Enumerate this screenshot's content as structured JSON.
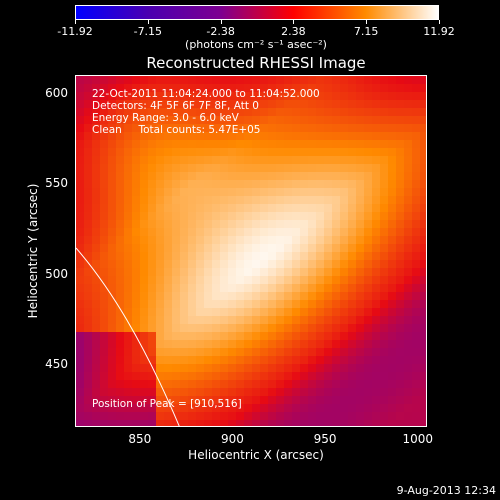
{
  "chart_data": {
    "type": "heatmap",
    "title": "Reconstructed RHESSI Image",
    "xlabel": "Heliocentric X (arcsec)",
    "ylabel": "Heliocentric Y (arcsec)",
    "xlim": [
      815,
      1005
    ],
    "ylim": [
      415,
      610
    ],
    "x_ticks": [
      "850",
      "900",
      "950",
      "1000"
    ],
    "y_ticks": [
      "450",
      "500",
      "550",
      "600"
    ],
    "colorbar": {
      "range": [
        -11.92,
        11.92
      ],
      "tick_labels": [
        "-11.92",
        "-7.15",
        "-2.38",
        "2.38",
        "7.15",
        "11.92"
      ],
      "units": "(photons cm⁻² s⁻¹ asec⁻²)",
      "colors": [
        "#0000ff",
        "#4b00b0",
        "#7d0090",
        "#ff0000",
        "#ff8a00",
        "#ffffff"
      ]
    },
    "annotations": [
      "22-Oct-2011 11:04:24.000 to 11:04:52.000",
      "Detectors: 4F 5F 6F 7F 8F, Att 0",
      "Energy Range: 3.0 - 6.0 keV",
      "Clean     Total counts: 5.47E+05"
    ],
    "peak_label": "Position of Peak = [910,516]",
    "peak": [
      910,
      516
    ]
  },
  "footer": {
    "timestamp": "9-Aug-2013 12:34"
  }
}
